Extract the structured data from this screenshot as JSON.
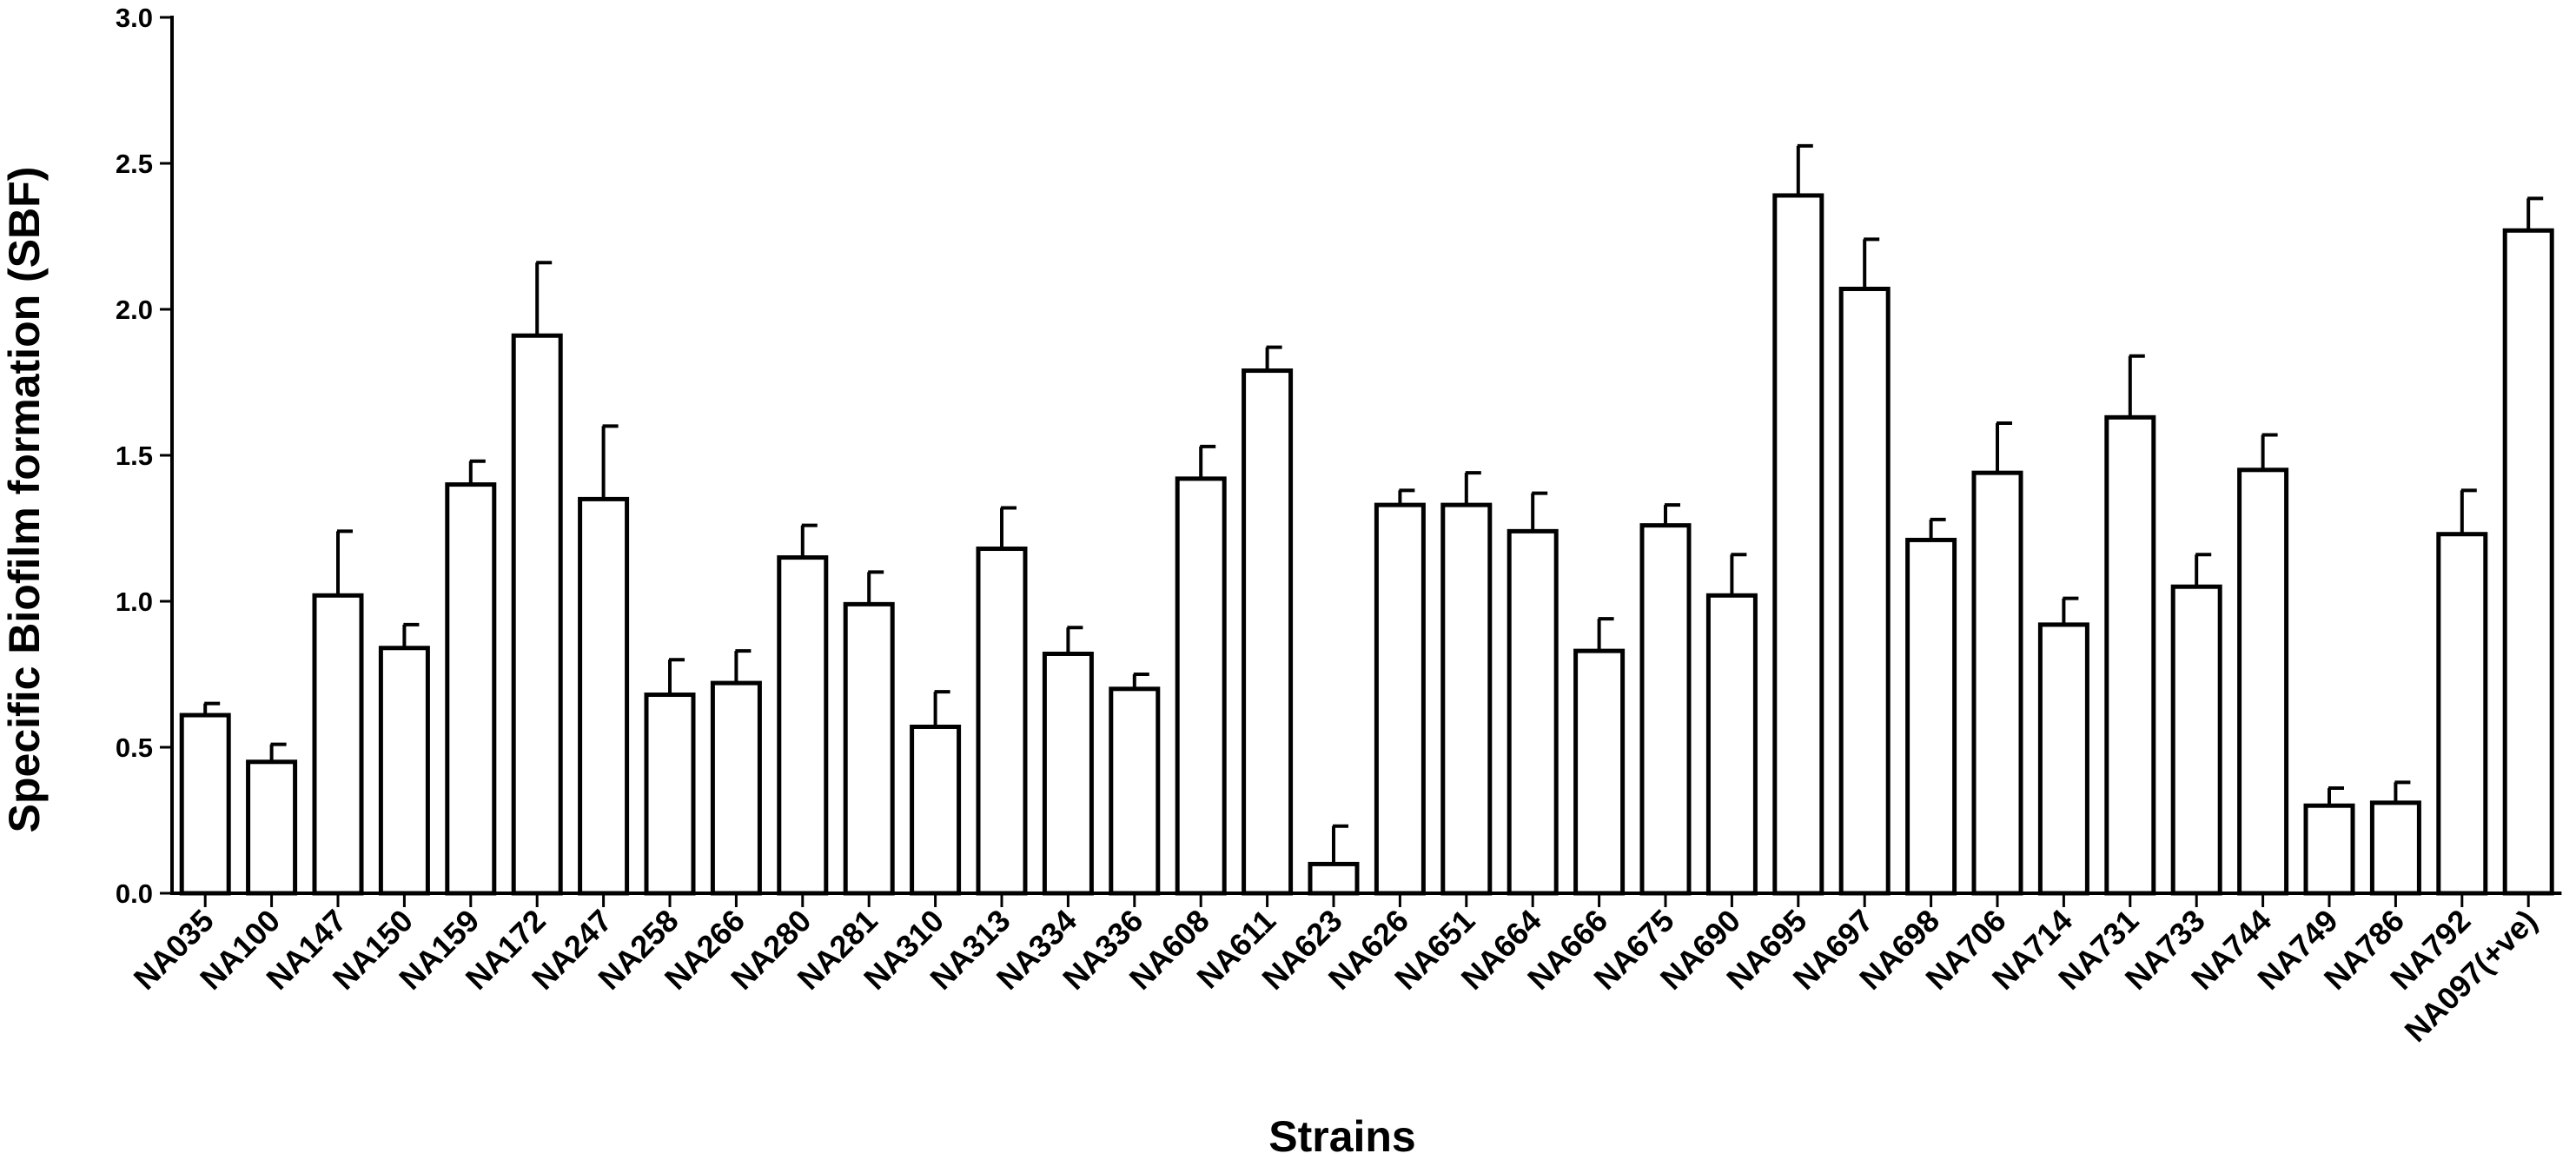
{
  "chart_data": {
    "type": "bar",
    "title": "",
    "xlabel": "Strains",
    "ylabel": "Specific Biofilm formation (SBF)",
    "ylim": [
      0,
      3.0
    ],
    "yticks": [
      "0.0",
      "0.5",
      "1.0",
      "1.5",
      "2.0",
      "2.5",
      "3.0"
    ],
    "grid": false,
    "legend": "none",
    "bar_fill": "#ffffff",
    "bar_stroke": "#000000",
    "categories": [
      "NA035",
      "NA100",
      "NA147",
      "NA150",
      "NA159",
      "NA172",
      "NA247",
      "NA258",
      "NA266",
      "NA280",
      "NA281",
      "NA310",
      "NA313",
      "NA334",
      "NA336",
      "NA608",
      "NA611",
      "NA623",
      "NA626",
      "NA651",
      "NA664",
      "NA666",
      "NA675",
      "NA690",
      "NA695",
      "NA697",
      "NA698",
      "NA706",
      "NA714",
      "NA731",
      "NA733",
      "NA744",
      "NA749",
      "NA786",
      "NA792",
      "NA097(+ve)"
    ],
    "values": [
      0.61,
      0.45,
      1.02,
      0.84,
      1.4,
      1.91,
      1.35,
      0.68,
      0.72,
      1.15,
      0.99,
      0.57,
      1.18,
      0.82,
      0.7,
      1.42,
      1.79,
      0.1,
      1.33,
      1.33,
      1.24,
      0.83,
      1.26,
      1.02,
      2.39,
      2.07,
      1.21,
      1.44,
      0.92,
      1.63,
      1.05,
      1.45,
      0.3,
      0.31,
      1.23,
      2.27
    ],
    "error_upper": [
      0.04,
      0.06,
      0.22,
      0.08,
      0.08,
      0.25,
      0.25,
      0.12,
      0.11,
      0.11,
      0.11,
      0.12,
      0.14,
      0.09,
      0.05,
      0.11,
      0.08,
      0.13,
      0.05,
      0.11,
      0.13,
      0.11,
      0.07,
      0.14,
      0.17,
      0.17,
      0.07,
      0.17,
      0.09,
      0.21,
      0.11,
      0.12,
      0.06,
      0.07,
      0.15,
      0.11
    ]
  }
}
